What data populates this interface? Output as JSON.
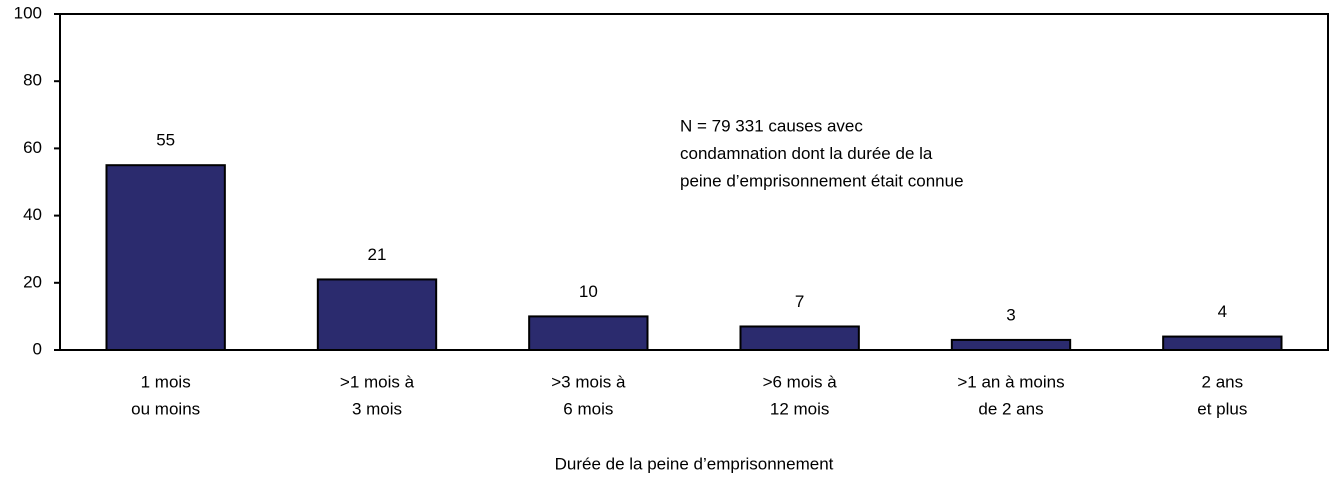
{
  "chart_data": {
    "type": "bar",
    "categories": [
      [
        "1 mois",
        "ou moins"
      ],
      [
        ">1 mois à",
        "3 mois"
      ],
      [
        ">3 mois à",
        "6 mois"
      ],
      [
        ">6 mois à",
        "12 mois"
      ],
      [
        ">1 an à moins",
        "de 2 ans"
      ],
      [
        "2 ans",
        "et plus"
      ]
    ],
    "values": [
      55,
      21,
      10,
      7,
      3,
      4
    ],
    "color": "#2b2b6e",
    "ylim": [
      0,
      100
    ],
    "yticks": [
      0,
      20,
      40,
      60,
      80,
      100
    ],
    "x_label": "Durée de la peine d’emprisonnement",
    "annotation": [
      "N = 79 331 causes avec",
      "condamnation dont la durée de la",
      "peine d’emprisonnement était connue"
    ]
  }
}
